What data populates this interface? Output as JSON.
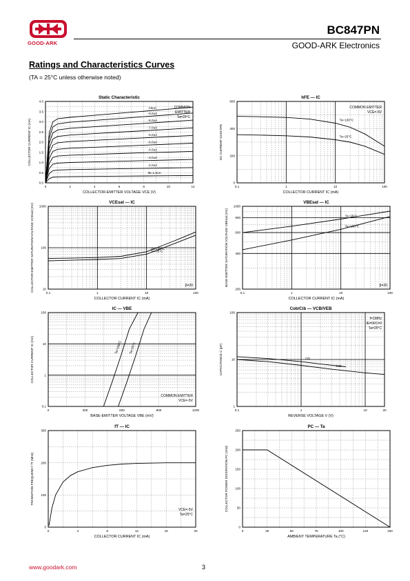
{
  "header": {
    "logo_text": "GOOD-ARK",
    "part_number": "BC847PN",
    "company": "GOOD-ARK Electronics",
    "brand_color": "#c8102e"
  },
  "section": {
    "title": "Ratings and Characteristics Curves",
    "note": "(TA = 25°C unless otherwise noted)"
  },
  "footer": {
    "url": "www.goodark.com",
    "page": "3"
  },
  "chart_data": [
    {
      "id": "c1",
      "type": "line",
      "title": "Static Characteristic",
      "xlabel": "COLLECTOR-EMITTER VOLTAGE  VCE  (V)",
      "ylabel": "COLLECTOR CURRENT  IC  (mA)",
      "xscale": "linear",
      "yscale": "linear",
      "xlim": [
        0,
        12
      ],
      "ylim": [
        0,
        4.0
      ],
      "xticks": [
        "0",
        "2",
        "4",
        "6",
        "8",
        "10",
        "12"
      ],
      "yticks": [
        "0.0",
        "0.5",
        "1.0",
        "1.5",
        "2.0",
        "2.5",
        "3.0",
        "3.5",
        "4.0"
      ],
      "annotations": [
        "COMMON",
        "EMITTER",
        "Ta=25°C"
      ],
      "series": [
        {
          "name": "IB=1.0uA",
          "x": [
            0,
            0.3,
            0.6,
            1,
            2,
            4,
            6,
            8,
            10,
            12
          ],
          "y": [
            0,
            0.2,
            0.28,
            0.3,
            0.31,
            0.32,
            0.33,
            0.34,
            0.35,
            0.36
          ]
        },
        {
          "name": "-2.0uA",
          "x": [
            0,
            0.3,
            0.6,
            1,
            2,
            4,
            6,
            8,
            10,
            12
          ],
          "y": [
            0,
            0.45,
            0.6,
            0.63,
            0.65,
            0.67,
            0.69,
            0.71,
            0.73,
            0.75
          ]
        },
        {
          "name": "-3.0uA",
          "x": [
            0,
            0.3,
            0.6,
            1,
            2,
            4,
            6,
            8,
            10,
            12
          ],
          "y": [
            0,
            0.7,
            0.92,
            0.97,
            1.0,
            1.03,
            1.06,
            1.09,
            1.12,
            1.15
          ]
        },
        {
          "name": "-4.0uA",
          "x": [
            0,
            0.3,
            0.6,
            1,
            2,
            4,
            6,
            8,
            10,
            12
          ],
          "y": [
            0,
            0.95,
            1.25,
            1.32,
            1.36,
            1.4,
            1.44,
            1.48,
            1.51,
            1.55
          ]
        },
        {
          "name": "-5.0uA",
          "x": [
            0,
            0.3,
            0.6,
            1,
            2,
            4,
            6,
            8,
            10,
            12
          ],
          "y": [
            0,
            1.2,
            1.55,
            1.65,
            1.7,
            1.75,
            1.8,
            1.85,
            1.9,
            1.95
          ]
        },
        {
          "name": "-6.0uA",
          "x": [
            0,
            0.3,
            0.6,
            1,
            2,
            4,
            6,
            8,
            10,
            12
          ],
          "y": [
            0,
            1.45,
            1.85,
            1.97,
            2.03,
            2.09,
            2.15,
            2.21,
            2.27,
            2.33
          ]
        },
        {
          "name": "-7.0uA",
          "x": [
            0,
            0.3,
            0.6,
            1,
            2,
            4,
            6,
            8,
            10,
            12
          ],
          "y": [
            0,
            1.7,
            2.15,
            2.28,
            2.35,
            2.42,
            2.49,
            2.56,
            2.63,
            2.7
          ]
        },
        {
          "name": "-8.0uA",
          "x": [
            0,
            0.3,
            0.6,
            1,
            2,
            4,
            6,
            8,
            10,
            12
          ],
          "y": [
            0,
            1.95,
            2.45,
            2.6,
            2.68,
            2.76,
            2.84,
            2.92,
            3.0,
            3.08
          ]
        },
        {
          "name": "-9.0uA",
          "x": [
            0,
            0.3,
            0.6,
            1,
            2,
            4,
            6,
            8,
            10,
            12
          ],
          "y": [
            0,
            2.2,
            2.75,
            2.9,
            2.98,
            3.07,
            3.16,
            3.25,
            3.34,
            3.43
          ]
        },
        {
          "name": "-10uA",
          "x": [
            0,
            0.3,
            0.6,
            1,
            2,
            4,
            6,
            8,
            10,
            12
          ],
          "y": [
            0,
            2.45,
            3.0,
            3.15,
            3.22,
            3.32,
            3.42,
            3.52,
            3.62,
            3.72
          ]
        }
      ]
    },
    {
      "id": "c2",
      "type": "line",
      "title": "hFE — IC",
      "xlabel": "COLLECTOR CURRENT  IC  (mA)",
      "ylabel": "DC CURRENT GAIN  hFE",
      "xscale": "log",
      "yscale": "linear",
      "xlim": [
        0.1,
        100
      ],
      "ylim": [
        0,
        600
      ],
      "xticks": [
        "0.1",
        "1",
        "10",
        "100"
      ],
      "yticks": [
        "0",
        "200",
        "400",
        "600"
      ],
      "annotations": [
        "COMMON EMITTER",
        "VCE=-5V"
      ],
      "series": [
        {
          "name": "Ta=100°C",
          "x": [
            0.1,
            0.3,
            1,
            3,
            10,
            20,
            40,
            100
          ],
          "y": [
            490,
            487,
            482,
            470,
            440,
            410,
            360,
            270
          ]
        },
        {
          "name": "Ta=25°C",
          "x": [
            0.1,
            0.3,
            1,
            3,
            10,
            20,
            40,
            100
          ],
          "y": [
            355,
            352,
            347,
            338,
            318,
            300,
            270,
            210
          ]
        }
      ]
    },
    {
      "id": "c3",
      "type": "line",
      "title": "VCEsat — IC",
      "xlabel": "COLLECTOR CURRENT  IC  (mA)",
      "ylabel": "COLLECTOR-EMITTER SATURATION VOLTAGE  VCEsat  (mV)",
      "xscale": "log",
      "yscale": "log",
      "xlim": [
        0.1,
        100
      ],
      "ylim": [
        10,
        1000
      ],
      "xticks": [
        "0.1",
        "1",
        "10",
        "100"
      ],
      "yticks": [
        "10",
        "100",
        "1000"
      ],
      "annotations": [
        "β=20"
      ],
      "series": [
        {
          "name": "Ta=100°C",
          "x": [
            0.1,
            0.3,
            1,
            3,
            10,
            20,
            50,
            100
          ],
          "y": [
            55,
            56,
            58,
            62,
            80,
            110,
            170,
            240
          ]
        },
        {
          "name": "Ta=25°C",
          "x": [
            0.1,
            0.3,
            1,
            3,
            10,
            20,
            50,
            100
          ],
          "y": [
            48,
            50,
            52,
            55,
            70,
            95,
            145,
            200
          ]
        }
      ]
    },
    {
      "id": "c4",
      "type": "line",
      "title": "VBEsat — IC",
      "xlabel": "COLLECTOR CURRENT  IC  (mA)",
      "ylabel": "BASE-EMITTER SATURATION VOLTAGE  VBEsat  (mV)",
      "xscale": "log",
      "yscale": "log",
      "xlim": [
        0.1,
        100
      ],
      "ylim": [
        200,
        1000
      ],
      "xticks": [
        "0.1",
        "1",
        "10",
        "100"
      ],
      "yticks": [
        "200",
        "400",
        "600",
        "800",
        "1000"
      ],
      "annotations": [
        "β=20"
      ],
      "series": [
        {
          "name": "Ta=25°C",
          "x": [
            0.1,
            1,
            10,
            100
          ],
          "y": [
            600,
            680,
            780,
            910
          ]
        },
        {
          "name": "Ta=100°C",
          "x": [
            0.1,
            1,
            10,
            100
          ],
          "y": [
            430,
            520,
            640,
            820
          ]
        }
      ]
    },
    {
      "id": "c5",
      "type": "line",
      "title": "IC — VBE",
      "xlabel": "BASE-EMITTER VOLTAGE  VBE  (mV)",
      "ylabel": "COLLECTOR CURRENT  IC  (mA)",
      "xscale": "linear",
      "yscale": "log",
      "xlim": [
        0,
        1200
      ],
      "ylim": [
        0.1,
        100
      ],
      "xticks": [
        "0",
        "300",
        "600",
        "900",
        "1200"
      ],
      "yticks": [
        "0.1",
        "1",
        "10",
        "100"
      ],
      "annotations": [
        "COMMON EMITTER",
        "VCE=-5V"
      ],
      "series": [
        {
          "name": "Ta=100°C",
          "x": [
            450,
            520,
            590,
            660,
            730
          ],
          "y": [
            0.1,
            0.6,
            4,
            30,
            100
          ]
        },
        {
          "name": "Ta=25°C",
          "x": [
            570,
            640,
            710,
            780,
            840
          ],
          "y": [
            0.1,
            0.6,
            4,
            30,
            100
          ]
        }
      ]
    },
    {
      "id": "c6",
      "type": "line",
      "title": "Cob/Cib — VCB/VEB",
      "xlabel": "REVERSE  VOLTAGE  V  (V)",
      "ylabel": "CAPACITANCE  C  (pF)",
      "xscale": "log",
      "yscale": "log",
      "xlim": [
        0.1,
        20
      ],
      "ylim": [
        1,
        100
      ],
      "xticks": [
        "0.1",
        "1",
        "10",
        "20"
      ],
      "yticks": [
        "1",
        "10",
        "100"
      ],
      "annotations": [
        "f=1MHz",
        "IE=0/IC=0",
        "Ta=25°C"
      ],
      "series": [
        {
          "name": "Cib",
          "x": [
            0.1,
            0.3,
            1,
            2,
            5
          ],
          "y": [
            11.5,
            10.5,
            9,
            8,
            7
          ]
        },
        {
          "name": "Cob",
          "x": [
            0.1,
            0.3,
            1,
            3,
            10,
            20
          ],
          "y": [
            10,
            9,
            7.5,
            6.2,
            5.2,
            4.8
          ]
        }
      ]
    },
    {
      "id": "c7",
      "type": "line",
      "title": "fT — IC",
      "xlabel": "COLLECTOR CURRENT  IC  (mA)",
      "ylabel": "TRANSITION FREQUENCY  fT  (MHz)",
      "xscale": "linear",
      "yscale": "linear",
      "xlim": [
        0,
        20
      ],
      "ylim": [
        0,
        300
      ],
      "xticks": [
        "0",
        "4",
        "8",
        "12",
        "16",
        "20"
      ],
      "yticks": [
        "0",
        "100",
        "200",
        "300"
      ],
      "annotations": [
        "VCE=-5V",
        "Ta=25°C"
      ],
      "series": [
        {
          "name": "fT",
          "x": [
            0.1,
            0.5,
            1,
            2,
            3,
            4,
            6,
            8,
            10,
            12,
            16,
            20
          ],
          "y": [
            5,
            60,
            100,
            140,
            160,
            172,
            185,
            192,
            196,
            198,
            200,
            200
          ]
        }
      ]
    },
    {
      "id": "c8",
      "type": "line",
      "title": "PC — Ta",
      "xlabel": "AMBIENT TEMPERATURE  Ta  (°C)",
      "ylabel": "COLLECTOR POWER DISSIPATION  PC  (mW)",
      "xscale": "linear",
      "yscale": "linear",
      "xlim": [
        0,
        150
      ],
      "ylim": [
        0,
        250
      ],
      "xticks": [
        "0",
        "25",
        "50",
        "75",
        "100",
        "125",
        "150"
      ],
      "yticks": [
        "0",
        "50",
        "100",
        "150",
        "200",
        "250"
      ],
      "series": [
        {
          "name": "PC",
          "x": [
            0,
            25,
            150
          ],
          "y": [
            200,
            200,
            0
          ]
        }
      ]
    }
  ]
}
